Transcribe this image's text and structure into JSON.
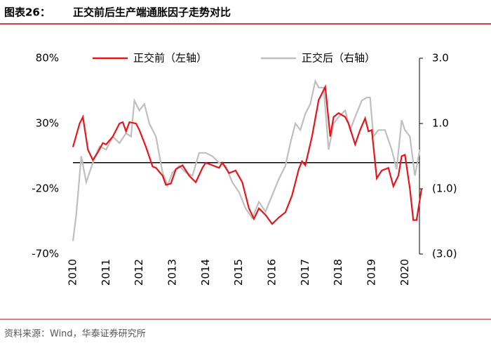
{
  "header": {
    "label": "图表26：",
    "title": "正交前后生产端通胀因子走势对比"
  },
  "source": "资料来源：Wind，华泰证券研究所",
  "chart_data": {
    "type": "line",
    "xlim": [
      2010,
      2020.5
    ],
    "xticks": [
      2010,
      2011,
      2012,
      2013,
      2014,
      2015,
      2016,
      2017,
      2018,
      2019,
      2020
    ],
    "ylim": [
      -70,
      80
    ],
    "yticks": [
      {
        "value": 80,
        "label": "80%"
      },
      {
        "value": 30,
        "label": "30%"
      },
      {
        "value": -20,
        "label": "-20%"
      },
      {
        "value": -70,
        "label": "-70%"
      }
    ],
    "y2lim": [
      -3,
      3
    ],
    "y2ticks": [
      {
        "value": 3,
        "label": "3.0"
      },
      {
        "value": 1,
        "label": "1.0"
      },
      {
        "value": -1,
        "label": "(1.0)"
      },
      {
        "value": -3,
        "label": "(3.0)"
      }
    ],
    "zero_line": true,
    "legend": "top",
    "series": [
      {
        "name": "正交前（左轴）",
        "color": "#e8141c",
        "x": [
          2010.0,
          2010.2,
          2010.3,
          2010.45,
          2010.6,
          2010.75,
          2010.9,
          2011.0,
          2011.2,
          2011.4,
          2011.5,
          2011.6,
          2011.7,
          2011.9,
          2012.0,
          2012.2,
          2012.4,
          2012.5,
          2012.7,
          2012.8,
          2012.95,
          2013.1,
          2013.3,
          2013.5,
          2013.7,
          2013.9,
          2014.0,
          2014.2,
          2014.4,
          2014.5,
          2014.7,
          2014.9,
          2015.1,
          2015.3,
          2015.45,
          2015.6,
          2015.8,
          2016.0,
          2016.2,
          2016.4,
          2016.6,
          2016.8,
          2016.9,
          2017.0,
          2017.2,
          2017.4,
          2017.6,
          2017.75,
          2017.85,
          2018.0,
          2018.2,
          2018.3,
          2018.5,
          2018.65,
          2018.8,
          2018.9,
          2019.0,
          2019.15,
          2019.3,
          2019.5,
          2019.65,
          2019.8,
          2019.9,
          2020.0,
          2020.15,
          2020.25,
          2020.35,
          2020.5
        ],
        "values": [
          12,
          30,
          35,
          10,
          2,
          8,
          15,
          14,
          20,
          30,
          31,
          24,
          31,
          30,
          25,
          12,
          -3,
          -4,
          -10,
          -17,
          -16,
          -5,
          -2,
          -10,
          -15,
          -4,
          0,
          -2,
          -4,
          0,
          -8,
          -6,
          -15,
          -35,
          -43,
          -35,
          -40,
          -47,
          -42,
          -38,
          -25,
          -5,
          1,
          -2,
          20,
          48,
          58,
          20,
          35,
          38,
          35,
          30,
          14,
          25,
          34,
          24,
          25,
          -12,
          -6,
          -4,
          -18,
          -10,
          5,
          6,
          -20,
          -44,
          -44,
          -20
        ]
      },
      {
        "name": "正交后（右轴）",
        "color": "#bfbfbf",
        "axis": "y2",
        "x": [
          2010.0,
          2010.1,
          2010.25,
          2010.4,
          2010.6,
          2010.8,
          2011.0,
          2011.2,
          2011.4,
          2011.6,
          2011.75,
          2011.85,
          2012.0,
          2012.15,
          2012.3,
          2012.5,
          2012.7,
          2012.85,
          2013.0,
          2013.2,
          2013.4,
          2013.6,
          2013.8,
          2014.0,
          2014.2,
          2014.4,
          2014.6,
          2014.8,
          2015.0,
          2015.2,
          2015.4,
          2015.6,
          2015.8,
          2016.0,
          2016.2,
          2016.4,
          2016.55,
          2016.7,
          2016.85,
          2017.0,
          2017.15,
          2017.3,
          2017.4,
          2017.55,
          2017.7,
          2017.85,
          2018.0,
          2018.2,
          2018.35,
          2018.5,
          2018.7,
          2018.85,
          2018.95,
          2019.05,
          2019.2,
          2019.4,
          2019.6,
          2019.75,
          2019.9,
          2020.0,
          2020.15,
          2020.3,
          2020.45
        ],
        "values": [
          -2.6,
          -1.8,
          0,
          -0.8,
          -0.2,
          0.3,
          0.2,
          0.6,
          0.4,
          0.7,
          0.6,
          1.7,
          1.4,
          1.6,
          1.0,
          0.6,
          -0.5,
          -0.9,
          -0.5,
          -0.3,
          -0.5,
          -0.6,
          0.1,
          0.1,
          0,
          -0.2,
          -0.3,
          -0.8,
          -1.1,
          -1.6,
          -1.9,
          -1.4,
          -1.7,
          -1.2,
          -0.7,
          -0.3,
          0.4,
          1.0,
          0.8,
          1.3,
          1.6,
          2.3,
          2.1,
          2.1,
          0.2,
          1.0,
          1.2,
          1.4,
          0.8,
          1.2,
          1.7,
          1.8,
          1.8,
          0.6,
          0.8,
          0.8,
          0.2,
          -0.4,
          1.1,
          0.8,
          0.6,
          -0.6,
          0.2
        ]
      }
    ]
  }
}
